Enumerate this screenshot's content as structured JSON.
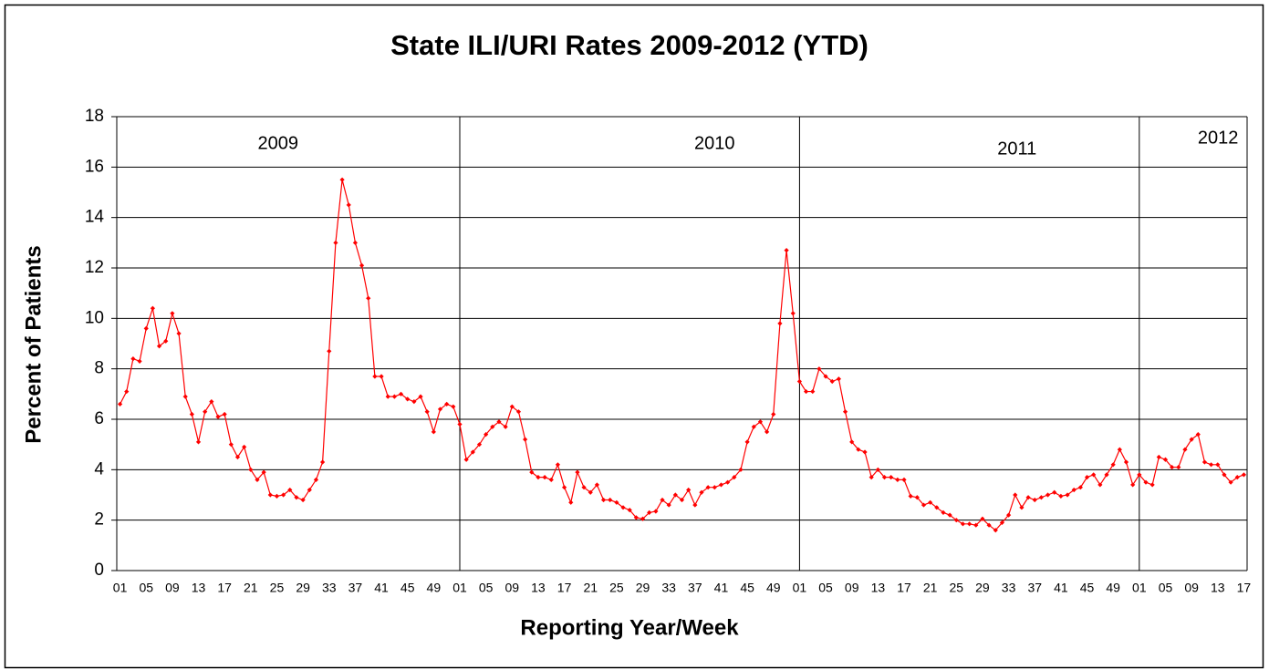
{
  "chart_data": {
    "type": "line",
    "title": "State ILI/URI Rates 2009-2012 (YTD)",
    "x_label": "Reporting Year/Week",
    "y_label": "Percent of Patients",
    "years": [
      "2009",
      "2010",
      "2011",
      "2012"
    ],
    "categories": [
      "01",
      null,
      null,
      null,
      "05",
      null,
      null,
      null,
      "09",
      null,
      null,
      null,
      "13",
      null,
      null,
      null,
      "17",
      null,
      null,
      null,
      "21",
      null,
      null,
      null,
      "25",
      null,
      null,
      null,
      "29",
      null,
      null,
      null,
      "33",
      null,
      null,
      null,
      "37",
      null,
      null,
      null,
      "41",
      null,
      null,
      null,
      "45",
      null,
      null,
      null,
      "49",
      null,
      null,
      null,
      "01",
      null,
      null,
      null,
      "05",
      null,
      null,
      null,
      "09",
      null,
      null,
      null,
      "13",
      null,
      null,
      null,
      "17",
      null,
      null,
      null,
      "21",
      null,
      null,
      null,
      "25",
      null,
      null,
      null,
      "29",
      null,
      null,
      null,
      "33",
      null,
      null,
      null,
      "37",
      null,
      null,
      null,
      "41",
      null,
      null,
      null,
      "45",
      null,
      null,
      null,
      "49",
      null,
      null,
      null,
      "01",
      null,
      null,
      null,
      "05",
      null,
      null,
      null,
      "09",
      null,
      null,
      null,
      "13",
      null,
      null,
      null,
      "17",
      null,
      null,
      null,
      "21",
      null,
      null,
      null,
      "25",
      null,
      null,
      null,
      "29",
      null,
      null,
      null,
      "33",
      null,
      null,
      null,
      "37",
      null,
      null,
      null,
      "41",
      null,
      null,
      null,
      "45",
      null,
      null,
      null,
      "49",
      null,
      null,
      null,
      "01",
      null,
      null,
      null,
      "05",
      null,
      null,
      null,
      "09",
      null,
      null,
      null,
      "13",
      null,
      null,
      null,
      "17"
    ],
    "series": [
      {
        "name": "ILI/URI",
        "color": "#ff0000",
        "values": [
          6.6,
          7.1,
          8.4,
          8.3,
          9.6,
          10.4,
          8.9,
          9.1,
          10.2,
          9.4,
          6.9,
          6.2,
          5.1,
          6.3,
          6.7,
          6.1,
          6.2,
          5.0,
          4.5,
          4.9,
          4.0,
          3.6,
          3.9,
          3.0,
          2.95,
          3.0,
          3.2,
          2.9,
          2.8,
          3.2,
          3.6,
          4.3,
          8.7,
          13.0,
          15.5,
          14.5,
          13.0,
          12.1,
          10.8,
          7.7,
          7.7,
          6.9,
          6.9,
          7.0,
          6.8,
          6.7,
          6.9,
          6.3,
          5.5,
          6.4,
          6.6,
          6.5,
          5.8,
          4.4,
          4.7,
          5.0,
          5.4,
          5.7,
          5.9,
          5.7,
          6.5,
          6.3,
          5.2,
          3.9,
          3.7,
          3.7,
          3.6,
          4.2,
          3.3,
          2.7,
          3.9,
          3.3,
          3.1,
          3.4,
          2.8,
          2.8,
          2.7,
          2.5,
          2.4,
          2.1,
          2.05,
          2.3,
          2.35,
          2.8,
          2.6,
          3.0,
          2.8,
          3.2,
          2.6,
          3.1,
          3.3,
          3.3,
          3.4,
          3.5,
          3.7,
          4.0,
          5.1,
          5.7,
          5.9,
          5.5,
          6.2,
          9.8,
          12.7,
          10.2,
          7.5,
          7.1,
          7.1,
          8.0,
          7.7,
          7.5,
          7.6,
          6.3,
          5.1,
          4.8,
          4.7,
          3.7,
          4.0,
          3.7,
          3.7,
          3.6,
          3.6,
          2.95,
          2.9,
          2.6,
          2.7,
          2.5,
          2.3,
          2.2,
          2.0,
          1.85,
          1.85,
          1.8,
          2.05,
          1.8,
          1.6,
          1.9,
          2.2,
          3.0,
          2.5,
          2.9,
          2.8,
          2.9,
          3.0,
          3.1,
          2.95,
          3.0,
          3.2,
          3.3,
          3.7,
          3.8,
          3.4,
          3.8,
          4.2,
          4.8,
          4.3,
          3.4,
          3.8,
          3.5,
          3.4,
          4.5,
          4.4,
          4.1,
          4.1,
          4.8,
          5.2,
          5.4,
          4.3,
          4.2,
          4.2,
          3.8,
          3.5,
          3.7,
          3.8
        ]
      }
    ],
    "ylim": [
      0,
      18
    ],
    "yticks": [
      0,
      2,
      4,
      6,
      8,
      10,
      12,
      14,
      16,
      18
    ],
    "grid": true
  }
}
